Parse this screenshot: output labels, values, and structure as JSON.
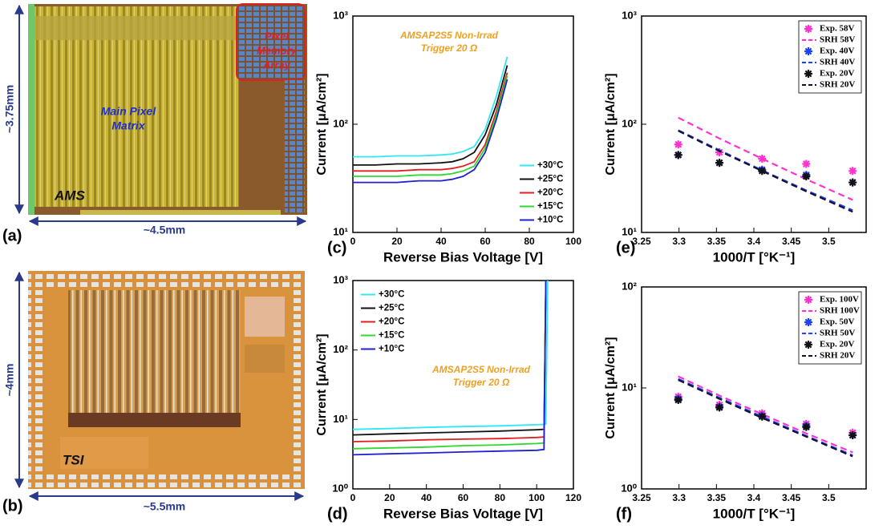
{
  "photos": [
    {
      "label": "(a)",
      "width": "~4.5mm",
      "height": "~3.75mm",
      "main_matrix": [
        "Main Pixel",
        "Matrix"
      ],
      "memory": [
        "Pixel",
        "Memory",
        "Array"
      ],
      "chip": "AMS"
    },
    {
      "label": "(b)",
      "width": "~5.5mm",
      "height": "~4mm",
      "chip": "TSI"
    }
  ],
  "chart_data": [
    {
      "type": "line",
      "panel_label": "(c)",
      "xlabel": "Reverse Bias Voltage [V]",
      "ylabel": "Current [μA/cm²]",
      "annotations": [
        "AMSAP2S5 Non-Irrad",
        "Trigger 20 Ω"
      ],
      "legend": "lower right",
      "ylog": true,
      "x": [
        0,
        10,
        20,
        30,
        40,
        45,
        50,
        55,
        60,
        65,
        70
      ],
      "xlim": [
        0,
        100
      ],
      "xticks": [
        0,
        20,
        40,
        60,
        80,
        100
      ],
      "ylim": [
        10,
        1000
      ],
      "yticks": [
        {
          "value": 10,
          "label": "10¹"
        },
        {
          "value": 100,
          "label": "10²"
        },
        {
          "value": 1000,
          "label": "10³"
        }
      ],
      "series": [
        {
          "name": "+30°C",
          "color": "#33e6f2",
          "values": [
            50,
            50,
            51,
            51,
            52,
            53,
            56,
            62,
            90,
            180,
            420
          ]
        },
        {
          "name": "+25°C",
          "color": "#111111",
          "values": [
            42,
            42,
            43,
            43,
            44,
            45,
            48,
            55,
            80,
            150,
            350
          ]
        },
        {
          "name": "+20°C",
          "color": "#e02020",
          "values": [
            37,
            37,
            37,
            38,
            38,
            39,
            41,
            45,
            65,
            130,
            300
          ]
        },
        {
          "name": "+15°C",
          "color": "#30d830",
          "values": [
            33,
            33,
            33,
            34,
            34,
            35,
            37,
            41,
            60,
            120,
            280
          ]
        },
        {
          "name": "+10°C",
          "color": "#2020d0",
          "values": [
            29,
            29,
            29,
            30,
            30,
            31,
            33,
            38,
            55,
            110,
            260
          ]
        }
      ]
    },
    {
      "type": "line",
      "panel_label": "(d)",
      "xlabel": "Reverse Bias Voltage [V]",
      "ylabel": "Current [μA/cm²]",
      "annotations": [
        "AMSAP2S5 Non-Irrad",
        "Trigger 20 Ω"
      ],
      "legend": "upper left",
      "ylog": true,
      "x": [
        0,
        20,
        40,
        60,
        80,
        100,
        104,
        105,
        106
      ],
      "xlim": [
        0,
        120
      ],
      "xticks": [
        0,
        20,
        40,
        60,
        80,
        100,
        120
      ],
      "ylim": [
        1,
        1000
      ],
      "yticks": [
        {
          "value": 1,
          "label": "10⁰"
        },
        {
          "value": 10,
          "label": "10¹"
        },
        {
          "value": 100,
          "label": "10²"
        },
        {
          "value": 1000,
          "label": "10³"
        }
      ],
      "series": [
        {
          "name": "+30°C",
          "color": "#33e6f2",
          "values": [
            7.2,
            7.4,
            7.7,
            7.9,
            8.1,
            8.4,
            8.5,
            8.6,
            1000
          ]
        },
        {
          "name": "+25°C",
          "color": "#111111",
          "values": [
            6.0,
            6.2,
            6.4,
            6.6,
            6.8,
            7.1,
            7.2,
            1000,
            null
          ]
        },
        {
          "name": "+20°C",
          "color": "#e02020",
          "values": [
            4.8,
            4.9,
            5.1,
            5.2,
            5.3,
            5.5,
            5.6,
            1000,
            null
          ]
        },
        {
          "name": "+15°C",
          "color": "#30d830",
          "values": [
            3.8,
            3.9,
            4.0,
            4.2,
            4.3,
            4.5,
            4.6,
            1000,
            null
          ]
        },
        {
          "name": "+10°C",
          "color": "#2020d0",
          "values": [
            3.1,
            3.2,
            3.3,
            3.4,
            3.5,
            3.6,
            3.7,
            1000,
            null
          ]
        }
      ]
    },
    {
      "type": "scatter",
      "panel_label": "(e)",
      "xlabel": "1000/T [°K⁻¹]",
      "ylabel": "Current [μA/cm²]",
      "legend": "upper right",
      "ylog": true,
      "x": [
        3.299,
        3.354,
        3.411,
        3.47,
        3.532
      ],
      "xlim": [
        3.25,
        3.55
      ],
      "xticks": [
        3.25,
        3.3,
        3.35,
        3.4,
        3.45,
        3.5
      ],
      "ylim": [
        10,
        1000
      ],
      "yticks": [
        {
          "value": 10,
          "label": "10¹"
        },
        {
          "value": 100,
          "label": "10²"
        },
        {
          "value": 1000,
          "label": "10³"
        }
      ],
      "series": [
        {
          "name": "Exp. 58V",
          "color": "#ff33cc",
          "style": "marker",
          "values": [
            65,
            55,
            48,
            43,
            37
          ]
        },
        {
          "name": "SRH 58V",
          "color": "#ff33cc",
          "style": "dashed",
          "values": [
            115,
            74,
            48,
            31,
            20
          ]
        },
        {
          "name": "Exp. 40V",
          "color": "#2040ff",
          "style": "marker",
          "values": [
            52,
            44,
            38,
            34,
            29
          ]
        },
        {
          "name": "SRH 40V",
          "color": "#2040ff",
          "style": "dashed",
          "values": [
            88,
            57.5,
            37.5,
            24.5,
            16
          ]
        },
        {
          "name": "Exp. 20V",
          "color": "#111111",
          "style": "marker",
          "values": [
            52,
            44,
            37,
            33,
            29
          ]
        },
        {
          "name": "SRH 20V",
          "color": "#111133",
          "style": "dashed",
          "values": [
            87,
            56.5,
            37,
            24,
            15.5
          ]
        }
      ]
    },
    {
      "type": "scatter",
      "panel_label": "(f)",
      "xlabel": "1000/T [°K⁻¹]",
      "ylabel": "Current [μA/cm²]",
      "legend": "upper right",
      "ylog": true,
      "x": [
        3.299,
        3.354,
        3.411,
        3.47,
        3.532
      ],
      "xlim": [
        3.25,
        3.55
      ],
      "xticks": [
        3.25,
        3.3,
        3.35,
        3.4,
        3.45,
        3.5
      ],
      "ylim": [
        1,
        100
      ],
      "yticks": [
        {
          "value": 1,
          "label": "10⁰"
        },
        {
          "value": 10,
          "label": "10¹"
        },
        {
          "value": 100,
          "label": "10²"
        }
      ],
      "series": [
        {
          "name": "Exp. 100V",
          "color": "#ff33cc",
          "style": "marker",
          "values": [
            8.2,
            6.8,
            5.6,
            4.4,
            3.6
          ]
        },
        {
          "name": "SRH 100V",
          "color": "#ff33cc",
          "style": "dashed",
          "values": [
            13,
            8.4,
            5.5,
            3.55,
            2.3
          ]
        },
        {
          "name": "Exp. 50V",
          "color": "#2040ff",
          "style": "marker",
          "values": [
            7.8,
            6.5,
            5.3,
            4.2,
            3.4
          ]
        },
        {
          "name": "SRH 50V",
          "color": "#2040ff",
          "style": "dashed",
          "values": [
            12.3,
            8.0,
            5.2,
            3.35,
            2.15
          ]
        },
        {
          "name": "Exp. 20V",
          "color": "#111111",
          "style": "marker",
          "values": [
            7.6,
            6.4,
            5.2,
            4.1,
            3.4
          ]
        },
        {
          "name": "SRH 20V",
          "color": "#111133",
          "style": "dashed",
          "values": [
            12,
            7.8,
            5.05,
            3.3,
            2.1
          ]
        }
      ]
    }
  ]
}
